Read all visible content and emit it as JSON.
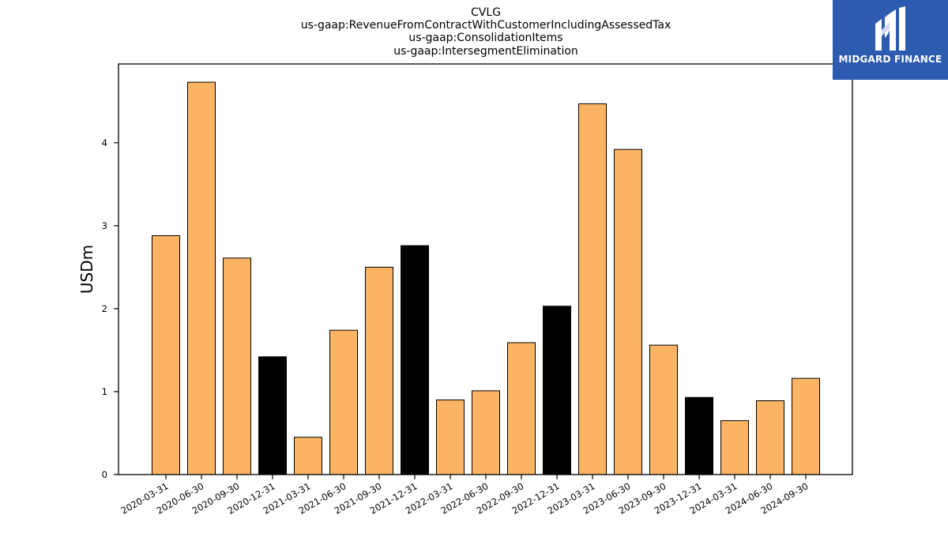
{
  "chart_data": {
    "type": "bar",
    "title_lines": [
      "CVLG",
      "us-gaap:RevenueFromContractWithCustomerIncludingAssessedTax",
      "us-gaap:ConsolidationItems",
      "us-gaap:IntersegmentElimination"
    ],
    "ylabel": "USDm",
    "xlabel": "",
    "ylim": [
      0,
      4.95
    ],
    "yticks": [
      0,
      1,
      2,
      3,
      4
    ],
    "grid": false,
    "categories": [
      "2020-03-31",
      "2020-06-30",
      "2020-09-30",
      "2020-12-31",
      "2021-03-31",
      "2021-06-30",
      "2021-09-30",
      "2021-12-31",
      "2022-03-31",
      "2022-06-30",
      "2022-09-30",
      "2022-12-31",
      "2023-03-31",
      "2023-06-30",
      "2023-09-30",
      "2023-12-31",
      "2024-03-31",
      "2024-06-30",
      "2024-09-30"
    ],
    "values": [
      2.88,
      4.73,
      2.61,
      1.42,
      0.45,
      1.74,
      2.5,
      2.76,
      0.9,
      1.01,
      1.59,
      2.03,
      4.47,
      3.92,
      1.56,
      0.93,
      0.65,
      0.89,
      1.16
    ],
    "colors": [
      "#fbb463",
      "#fbb463",
      "#fbb463",
      "#000000",
      "#fbb463",
      "#fbb463",
      "#fbb463",
      "#000000",
      "#fbb463",
      "#fbb463",
      "#fbb463",
      "#000000",
      "#fbb463",
      "#fbb463",
      "#fbb463",
      "#000000",
      "#fbb463",
      "#fbb463",
      "#fbb463"
    ]
  },
  "logo": {
    "text": "MIDGARD FINANCE",
    "background": "#2c5bb0"
  }
}
